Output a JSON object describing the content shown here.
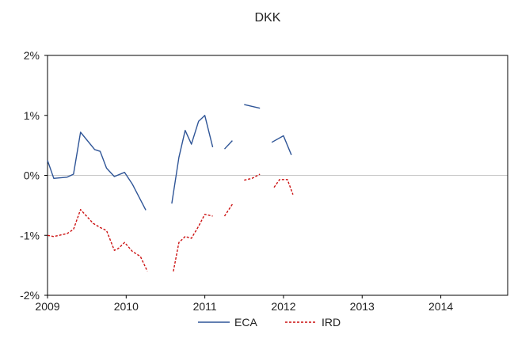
{
  "chart_data": {
    "type": "line",
    "title": "DKK",
    "xlabel": "",
    "ylabel": "",
    "xlim": [
      2009.0,
      2014.85
    ],
    "ylim": [
      -2,
      2
    ],
    "x_ticks": [
      2009,
      2010,
      2011,
      2012,
      2013,
      2014
    ],
    "x_tick_labels": [
      "2009",
      "2010",
      "2011",
      "2012",
      "2013",
      "2014"
    ],
    "y_ticks": [
      -2,
      -1,
      0,
      1,
      2
    ],
    "y_tick_labels": [
      "-2%",
      "-1%",
      "0%",
      "1%",
      "2%"
    ],
    "grid": false,
    "zero_line": true,
    "legend_position": "bottom",
    "series": [
      {
        "name": "ECA",
        "color": "#2f5597",
        "style": "solid",
        "segments": [
          [
            [
              2009.0,
              0.25
            ],
            [
              2009.08,
              -0.05
            ],
            [
              2009.25,
              -0.03
            ],
            [
              2009.33,
              0.02
            ],
            [
              2009.42,
              0.72
            ],
            [
              2009.6,
              0.43
            ],
            [
              2009.67,
              0.4
            ],
            [
              2009.75,
              0.12
            ],
            [
              2009.85,
              -0.02
            ],
            [
              2009.98,
              0.05
            ],
            [
              2010.08,
              -0.15
            ],
            [
              2010.25,
              -0.58
            ]
          ],
          [
            [
              2010.58,
              -0.47
            ],
            [
              2010.67,
              0.3
            ],
            [
              2010.75,
              0.75
            ],
            [
              2010.83,
              0.52
            ],
            [
              2010.92,
              0.9
            ],
            [
              2011.0,
              1.0
            ],
            [
              2011.1,
              0.47
            ]
          ],
          [
            [
              2011.25,
              0.44
            ],
            [
              2011.35,
              0.58
            ]
          ],
          [
            [
              2011.5,
              1.18
            ],
            [
              2011.7,
              1.12
            ]
          ],
          [
            [
              2011.85,
              0.55
            ],
            [
              2012.0,
              0.66
            ],
            [
              2012.1,
              0.34
            ]
          ]
        ]
      },
      {
        "name": "IRD",
        "color": "#cc1111",
        "style": "dashed",
        "segments": [
          [
            [
              2009.0,
              -1.0
            ],
            [
              2009.08,
              -1.02
            ],
            [
              2009.25,
              -0.97
            ],
            [
              2009.33,
              -0.9
            ],
            [
              2009.42,
              -0.57
            ],
            [
              2009.58,
              -0.8
            ],
            [
              2009.67,
              -0.87
            ],
            [
              2009.75,
              -0.92
            ],
            [
              2009.85,
              -1.25
            ],
            [
              2009.9,
              -1.22
            ],
            [
              2009.98,
              -1.12
            ],
            [
              2010.08,
              -1.27
            ],
            [
              2010.18,
              -1.35
            ],
            [
              2010.27,
              -1.6
            ]
          ],
          [
            [
              2010.6,
              -1.6
            ],
            [
              2010.67,
              -1.12
            ],
            [
              2010.75,
              -1.02
            ],
            [
              2010.83,
              -1.05
            ],
            [
              2010.92,
              -0.85
            ],
            [
              2011.0,
              -0.65
            ],
            [
              2011.1,
              -0.68
            ]
          ],
          [
            [
              2011.25,
              -0.68
            ],
            [
              2011.35,
              -0.48
            ]
          ],
          [
            [
              2011.5,
              -0.08
            ],
            [
              2011.6,
              -0.05
            ],
            [
              2011.7,
              0.02
            ]
          ],
          [
            [
              2011.88,
              -0.2
            ],
            [
              2011.95,
              -0.07
            ],
            [
              2012.05,
              -0.07
            ],
            [
              2012.12,
              -0.32
            ]
          ]
        ]
      }
    ]
  }
}
